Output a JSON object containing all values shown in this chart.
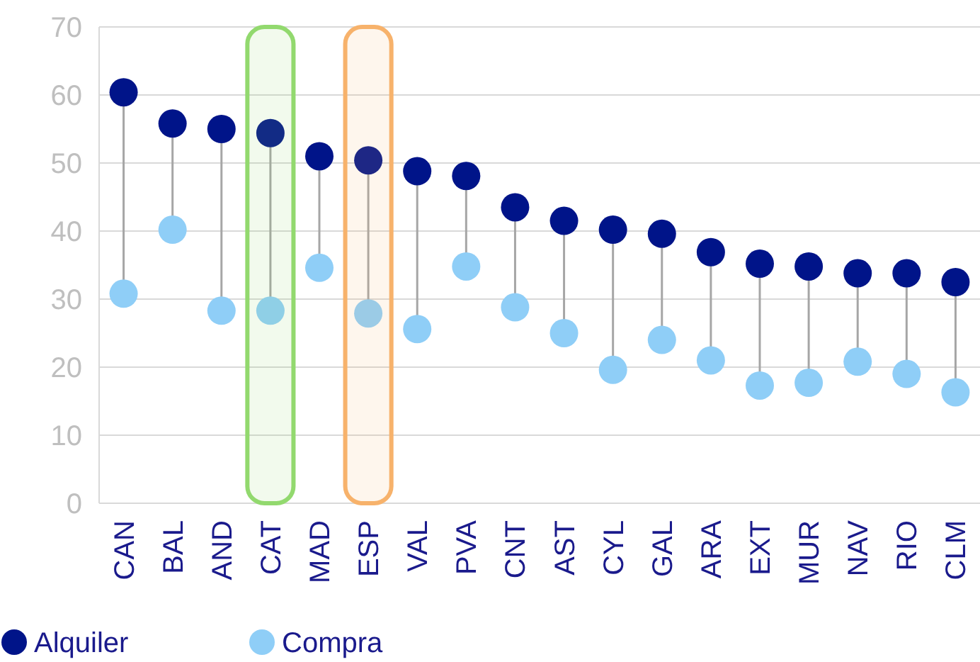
{
  "chart_data": {
    "type": "scatter",
    "categories": [
      "CAN",
      "BAL",
      "AND",
      "CAT",
      "MAD",
      "ESP",
      "VAL",
      "PVA",
      "CNT",
      "AST",
      "CYL",
      "GAL",
      "ARA",
      "EXT",
      "MUR",
      "NAV",
      "RIO",
      "CLM"
    ],
    "series": [
      {
        "name": "Alquiler",
        "color": "#001489",
        "values": [
          60.4,
          55.8,
          55,
          54.4,
          51,
          50.4,
          48.8,
          48.1,
          43.5,
          41.5,
          40.2,
          39.6,
          36.9,
          35.2,
          34.8,
          33.8,
          33.8,
          32.5
        ]
      },
      {
        "name": "Compra",
        "color": "#8fcef7",
        "values": [
          30.8,
          40.2,
          28.3,
          28.3,
          34.6,
          27.9,
          25.6,
          34.8,
          28.8,
          25,
          19.6,
          24,
          21,
          17.3,
          17.7,
          20.8,
          19,
          16.3
        ]
      }
    ],
    "ylim": [
      0,
      70
    ],
    "yticks": [
      0,
      10,
      20,
      30,
      40,
      50,
      60,
      70
    ],
    "grid": "y",
    "legend": "bottom",
    "marker": "circle",
    "bands": [
      {
        "axis": "x",
        "from": "CAT",
        "to": "CAT",
        "color": "#92d96e"
      },
      {
        "axis": "x",
        "from": "ESP",
        "to": "ESP",
        "color": "#f7b26b"
      }
    ]
  }
}
